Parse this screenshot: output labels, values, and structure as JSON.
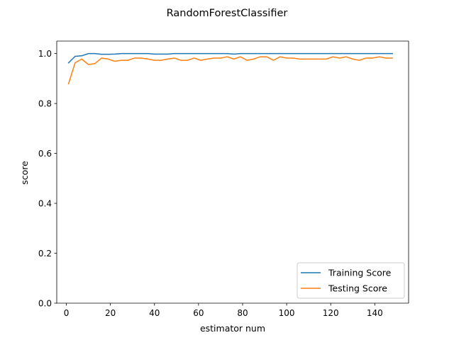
{
  "chart_data": {
    "type": "line",
    "title": "RandomForestClassifier",
    "xlabel": "estimator num",
    "ylabel": "score",
    "xlim": [
      -4.35,
      155.35
    ],
    "ylim": [
      0.0,
      1.05
    ],
    "xticks": [
      0,
      20,
      40,
      60,
      80,
      100,
      120,
      140
    ],
    "yticks": [
      0.0,
      0.2,
      0.4,
      0.6,
      0.8,
      1.0
    ],
    "xtick_labels": [
      "0",
      "20",
      "40",
      "60",
      "80",
      "100",
      "120",
      "140"
    ],
    "ytick_labels": [
      "0.0",
      "0.2",
      "0.4",
      "0.6",
      "0.8",
      "1.0"
    ],
    "legend_position": "lower-right",
    "grid": false,
    "x": [
      1,
      4,
      7,
      10,
      13,
      16,
      19,
      22,
      25,
      28,
      31,
      34,
      37,
      40,
      43,
      46,
      49,
      52,
      55,
      58,
      61,
      64,
      67,
      70,
      73,
      76,
      79,
      82,
      85,
      88,
      91,
      94,
      97,
      100,
      103,
      106,
      109,
      112,
      115,
      118,
      121,
      124,
      127,
      130,
      133,
      136,
      139,
      142,
      145,
      148
    ],
    "series": [
      {
        "name": "Training Score",
        "color": "#1f77b4",
        "values": [
          0.963,
          0.989,
          0.991,
          1.0,
          1.0,
          0.997,
          0.997,
          0.998,
          1.0,
          1.0,
          1.0,
          1.0,
          1.0,
          0.998,
          0.998,
          0.998,
          1.0,
          1.0,
          1.0,
          1.0,
          1.0,
          1.0,
          1.0,
          1.0,
          1.0,
          0.998,
          1.0,
          1.0,
          1.0,
          1.0,
          1.0,
          1.0,
          1.0,
          1.0,
          1.0,
          1.0,
          1.0,
          1.0,
          1.0,
          1.0,
          1.0,
          1.0,
          1.0,
          1.0,
          1.0,
          1.0,
          1.0,
          1.0,
          1.0,
          1.0
        ]
      },
      {
        "name": "Testing Score",
        "color": "#ff7f0e",
        "values": [
          0.879,
          0.963,
          0.978,
          0.956,
          0.96,
          0.982,
          0.978,
          0.969,
          0.973,
          0.973,
          0.982,
          0.982,
          0.978,
          0.973,
          0.973,
          0.978,
          0.982,
          0.973,
          0.973,
          0.982,
          0.973,
          0.978,
          0.982,
          0.982,
          0.987,
          0.978,
          0.987,
          0.973,
          0.978,
          0.987,
          0.987,
          0.973,
          0.987,
          0.982,
          0.982,
          0.978,
          0.978,
          0.978,
          0.978,
          0.978,
          0.987,
          0.982,
          0.987,
          0.978,
          0.973,
          0.982,
          0.982,
          0.987,
          0.982,
          0.982
        ]
      }
    ]
  }
}
